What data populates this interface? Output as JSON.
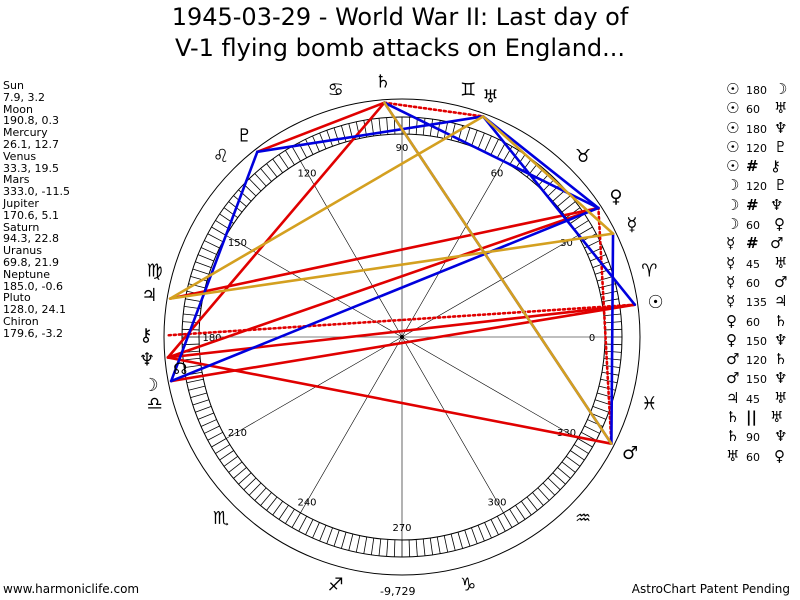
{
  "title": {
    "line1": "1945-03-29 - World War II: Last day of",
    "line2": "V-1 flying bomb attacks on England..."
  },
  "positions": [
    {
      "name": "Sun",
      "coords": "7.9, 3.2"
    },
    {
      "name": "Moon",
      "coords": "190.8, 0.3"
    },
    {
      "name": "Mercury",
      "coords": "26.1, 12.7"
    },
    {
      "name": "Venus",
      "coords": "33.3, 19.5"
    },
    {
      "name": "Mars",
      "coords": "333.0, -11.5"
    },
    {
      "name": "Jupiter",
      "coords": "170.6, 5.1"
    },
    {
      "name": "Saturn",
      "coords": "94.3, 22.8"
    },
    {
      "name": "Uranus",
      "coords": "69.8, 21.9"
    },
    {
      "name": "Neptune",
      "coords": "185.0, -0.6"
    },
    {
      "name": "Pluto",
      "coords": "128.0, 24.1"
    },
    {
      "name": "Chiron",
      "coords": "179.6, -3.2"
    }
  ],
  "aspects": [
    {
      "a": "☉",
      "sep": "",
      "n": "180",
      "b": "☽"
    },
    {
      "a": "☉",
      "sep": "",
      "n": "60",
      "b": "♅"
    },
    {
      "a": "☉",
      "sep": "",
      "n": "180",
      "b": "♆"
    },
    {
      "a": "☉",
      "sep": "",
      "n": "120",
      "b": "♇"
    },
    {
      "a": "☉",
      "sep": "#",
      "n": "",
      "b": "⚷"
    },
    {
      "a": "☽",
      "sep": "",
      "n": "120",
      "b": "♇"
    },
    {
      "a": "☽",
      "sep": "#",
      "n": "",
      "b": "♆"
    },
    {
      "a": "☽",
      "sep": "",
      "n": "60",
      "b": "♀"
    },
    {
      "a": "☿",
      "sep": "#",
      "n": "",
      "b": "♂"
    },
    {
      "a": "☿",
      "sep": "",
      "n": "45",
      "b": "♅"
    },
    {
      "a": "☿",
      "sep": "",
      "n": "60",
      "b": "♂"
    },
    {
      "a": "☿",
      "sep": "",
      "n": "135",
      "b": "♃"
    },
    {
      "a": "♀",
      "sep": "",
      "n": "60",
      "b": "♄"
    },
    {
      "a": "♀",
      "sep": "",
      "n": "150",
      "b": "♆"
    },
    {
      "a": "♂",
      "sep": "",
      "n": "120",
      "b": "♄"
    },
    {
      "a": "♂",
      "sep": "",
      "n": "150",
      "b": "♆"
    },
    {
      "a": "♃",
      "sep": "",
      "n": "45",
      "b": "♅"
    },
    {
      "a": "♄",
      "sep": "||",
      "n": "",
      "b": "♅"
    },
    {
      "a": "♄",
      "sep": "",
      "n": "90",
      "b": "♆"
    },
    {
      "a": "♅",
      "sep": "",
      "n": "60",
      "b": "♀"
    }
  ],
  "wheel": {
    "degree_labels": [
      "0",
      "30",
      "60",
      "90",
      "120",
      "150",
      "180",
      "210",
      "240",
      "270",
      "300",
      "330"
    ],
    "center_readout": "-9,729",
    "planets": [
      {
        "glyph": "☉",
        "lon": 7.9,
        "color": "#000000"
      },
      {
        "glyph": "☽",
        "lon": 190.8,
        "color": "#000000"
      },
      {
        "glyph": "☿",
        "lon": 26.1,
        "color": "#000000"
      },
      {
        "glyph": "♀",
        "lon": 33.3,
        "color": "#000000"
      },
      {
        "glyph": "♂",
        "lon": 333.0,
        "color": "#000000"
      },
      {
        "glyph": "♃",
        "lon": 170.6,
        "color": "#000000"
      },
      {
        "glyph": "♄",
        "lon": 94.3,
        "color": "#000000"
      },
      {
        "glyph": "♅",
        "lon": 69.8,
        "color": "#000000"
      },
      {
        "glyph": "♆",
        "lon": 185.0,
        "color": "#000000"
      },
      {
        "glyph": "♇",
        "lon": 128.0,
        "color": "#000000"
      },
      {
        "glyph": "⚷",
        "lon": 179.6,
        "color": "#000000"
      }
    ],
    "signs": [
      {
        "glyph": "♈",
        "lon": 15
      },
      {
        "glyph": "♉",
        "lon": 45
      },
      {
        "glyph": "♊",
        "lon": 75
      },
      {
        "glyph": "♋",
        "lon": 105
      },
      {
        "glyph": "♌",
        "lon": 135
      },
      {
        "glyph": "♍",
        "lon": 165
      },
      {
        "glyph": "♎",
        "lon": 195
      },
      {
        "glyph": "♏",
        "lon": 225
      },
      {
        "glyph": "♐",
        "lon": 255
      },
      {
        "glyph": "♑",
        "lon": 285
      },
      {
        "glyph": "♒",
        "lon": 315
      },
      {
        "glyph": "♓",
        "lon": 345
      }
    ],
    "extra_points": [
      {
        "glyph": "☊",
        "lon": 188,
        "label": "node"
      }
    ],
    "colors": {
      "red": "#e00000",
      "blue": "#0000dd",
      "gold": "#d4a020",
      "ring": "#000000"
    }
  },
  "footer": {
    "left": "www.harmoniclife.com",
    "right": "AstroChart Patent Pending"
  }
}
